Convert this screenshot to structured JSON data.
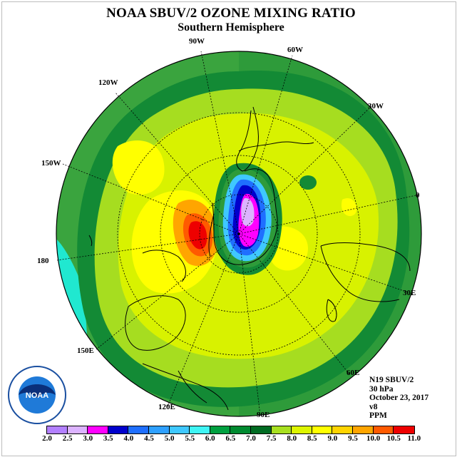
{
  "title": "NOAA SBUV/2 OZONE MIXING RATIO",
  "subtitle": "Southern Hemisphere",
  "longitude_labels": [
    "90W",
    "60W",
    "120W",
    "30W",
    "150W",
    "0",
    "180",
    "30E",
    "150E",
    "60E",
    "120E",
    "90E"
  ],
  "info": {
    "satellite": "N19 SBUV/2",
    "level": "30 hPa",
    "date": "October 23, 2017",
    "version": "v8",
    "units": "PPM"
  },
  "logo_text": "NOAA",
  "colorbar": {
    "ticks": [
      "2.0",
      "2.5",
      "3.0",
      "3.5",
      "4.0",
      "4.5",
      "5.0",
      "5.5",
      "6.0",
      "6.5",
      "7.0",
      "7.5",
      "8.0",
      "8.5",
      "9.0",
      "9.5",
      "10.0",
      "10.5",
      "11.0"
    ],
    "colors": [
      "#b380ff",
      "#dcb3ff",
      "#ff00ff",
      "#0000cc",
      "#1f6fff",
      "#2ea0ff",
      "#3fc8ff",
      "#3ff5f5",
      "#00a040",
      "#008a30",
      "#006b22",
      "#a8e020",
      "#ddf500",
      "#ffff00",
      "#ffd400",
      "#ffa500",
      "#ff5a00",
      "#ee0000",
      "#8b4513"
    ]
  }
}
